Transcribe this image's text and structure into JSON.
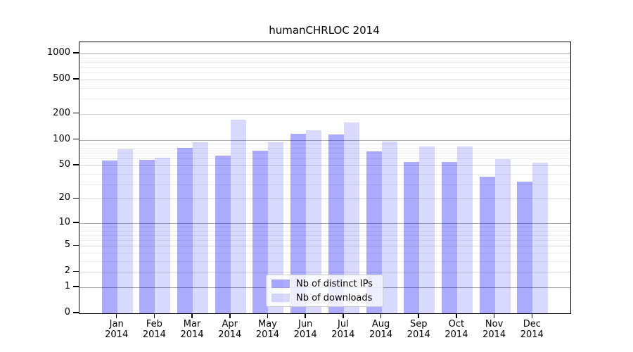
{
  "chart_data": {
    "type": "bar",
    "title": "humanCHRLOC 2014",
    "categories": [
      "Jan",
      "Feb",
      "Mar",
      "Apr",
      "May",
      "Jun",
      "Jul",
      "Aug",
      "Sep",
      "Oct",
      "Nov",
      "Dec"
    ],
    "year": "2014",
    "series": [
      {
        "name": "Nb of distinct IPs",
        "color": "rgba(0,0,255,0.33)",
        "values": [
          57,
          58,
          80,
          65,
          75,
          118,
          116,
          73,
          55,
          55,
          37,
          32
        ]
      },
      {
        "name": "Nb of downloads",
        "color": "rgba(0,0,255,0.15)",
        "values": [
          77,
          62,
          93,
          172,
          93,
          130,
          160,
          95,
          83,
          83,
          59,
          54
        ]
      }
    ],
    "y_scale": "log1p",
    "y_ticks": [
      0,
      1,
      2,
      5,
      10,
      20,
      50,
      100,
      200,
      500,
      1000
    ],
    "ylim": [
      0,
      1000
    ],
    "grid": true,
    "legend_position": "bottom-center",
    "colors": {
      "grid_decade": "#aaaaaa",
      "grid_major": "#d6d6d6",
      "grid_minor": "#ebebeb",
      "spine": "#000000",
      "background": "#ffffff"
    }
  }
}
